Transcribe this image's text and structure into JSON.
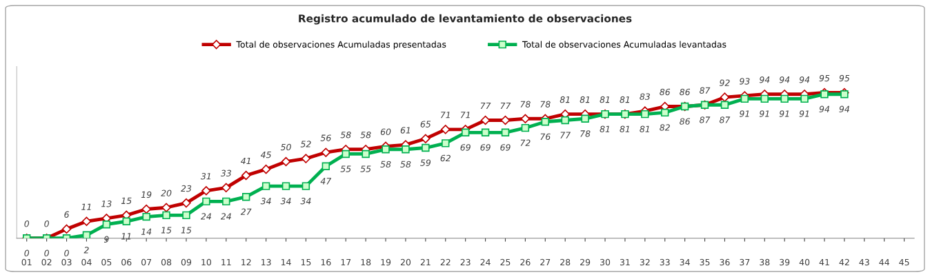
{
  "chart_data": {
    "type": "line",
    "title": "Registro acumulado de levantamiento de observaciones",
    "categories": [
      "01",
      "02",
      "03",
      "04",
      "05",
      "06",
      "07",
      "08",
      "09",
      "10",
      "11",
      "12",
      "13",
      "14",
      "15",
      "16",
      "17",
      "18",
      "19",
      "20",
      "21",
      "22",
      "23",
      "24",
      "25",
      "26",
      "27",
      "28",
      "29",
      "30",
      "31",
      "32",
      "33",
      "34",
      "35",
      "36",
      "37",
      "38",
      "39",
      "40",
      "41",
      "42",
      "43",
      "44",
      "45"
    ],
    "series": [
      {
        "name": "Total de observaciones Acumuladas presentadas",
        "color": "#c00000",
        "marker": "diamond",
        "values": [
          0,
          0,
          6,
          11,
          13,
          15,
          19,
          20,
          23,
          31,
          33,
          41,
          45,
          50,
          52,
          56,
          58,
          58,
          60,
          61,
          65,
          71,
          71,
          77,
          77,
          78,
          78,
          81,
          81,
          81,
          81,
          83,
          86,
          86,
          87,
          92,
          93,
          94,
          94,
          94,
          95,
          95,
          null,
          null,
          null
        ]
      },
      {
        "name": "Total de observaciones Acumuladas levantadas",
        "color": "#00b050",
        "marker": "square",
        "values": [
          0,
          0,
          0,
          2,
          9,
          11,
          14,
          15,
          15,
          24,
          24,
          27,
          34,
          34,
          34,
          47,
          55,
          55,
          58,
          58,
          59,
          62,
          69,
          69,
          69,
          72,
          76,
          77,
          78,
          81,
          81,
          81,
          82,
          86,
          87,
          87,
          91,
          91,
          91,
          91,
          94,
          94,
          null,
          null,
          null
        ]
      }
    ],
    "tick_labels": "x",
    "data_labels": true,
    "legend": "top",
    "grid": false,
    "line_style": "solid"
  }
}
